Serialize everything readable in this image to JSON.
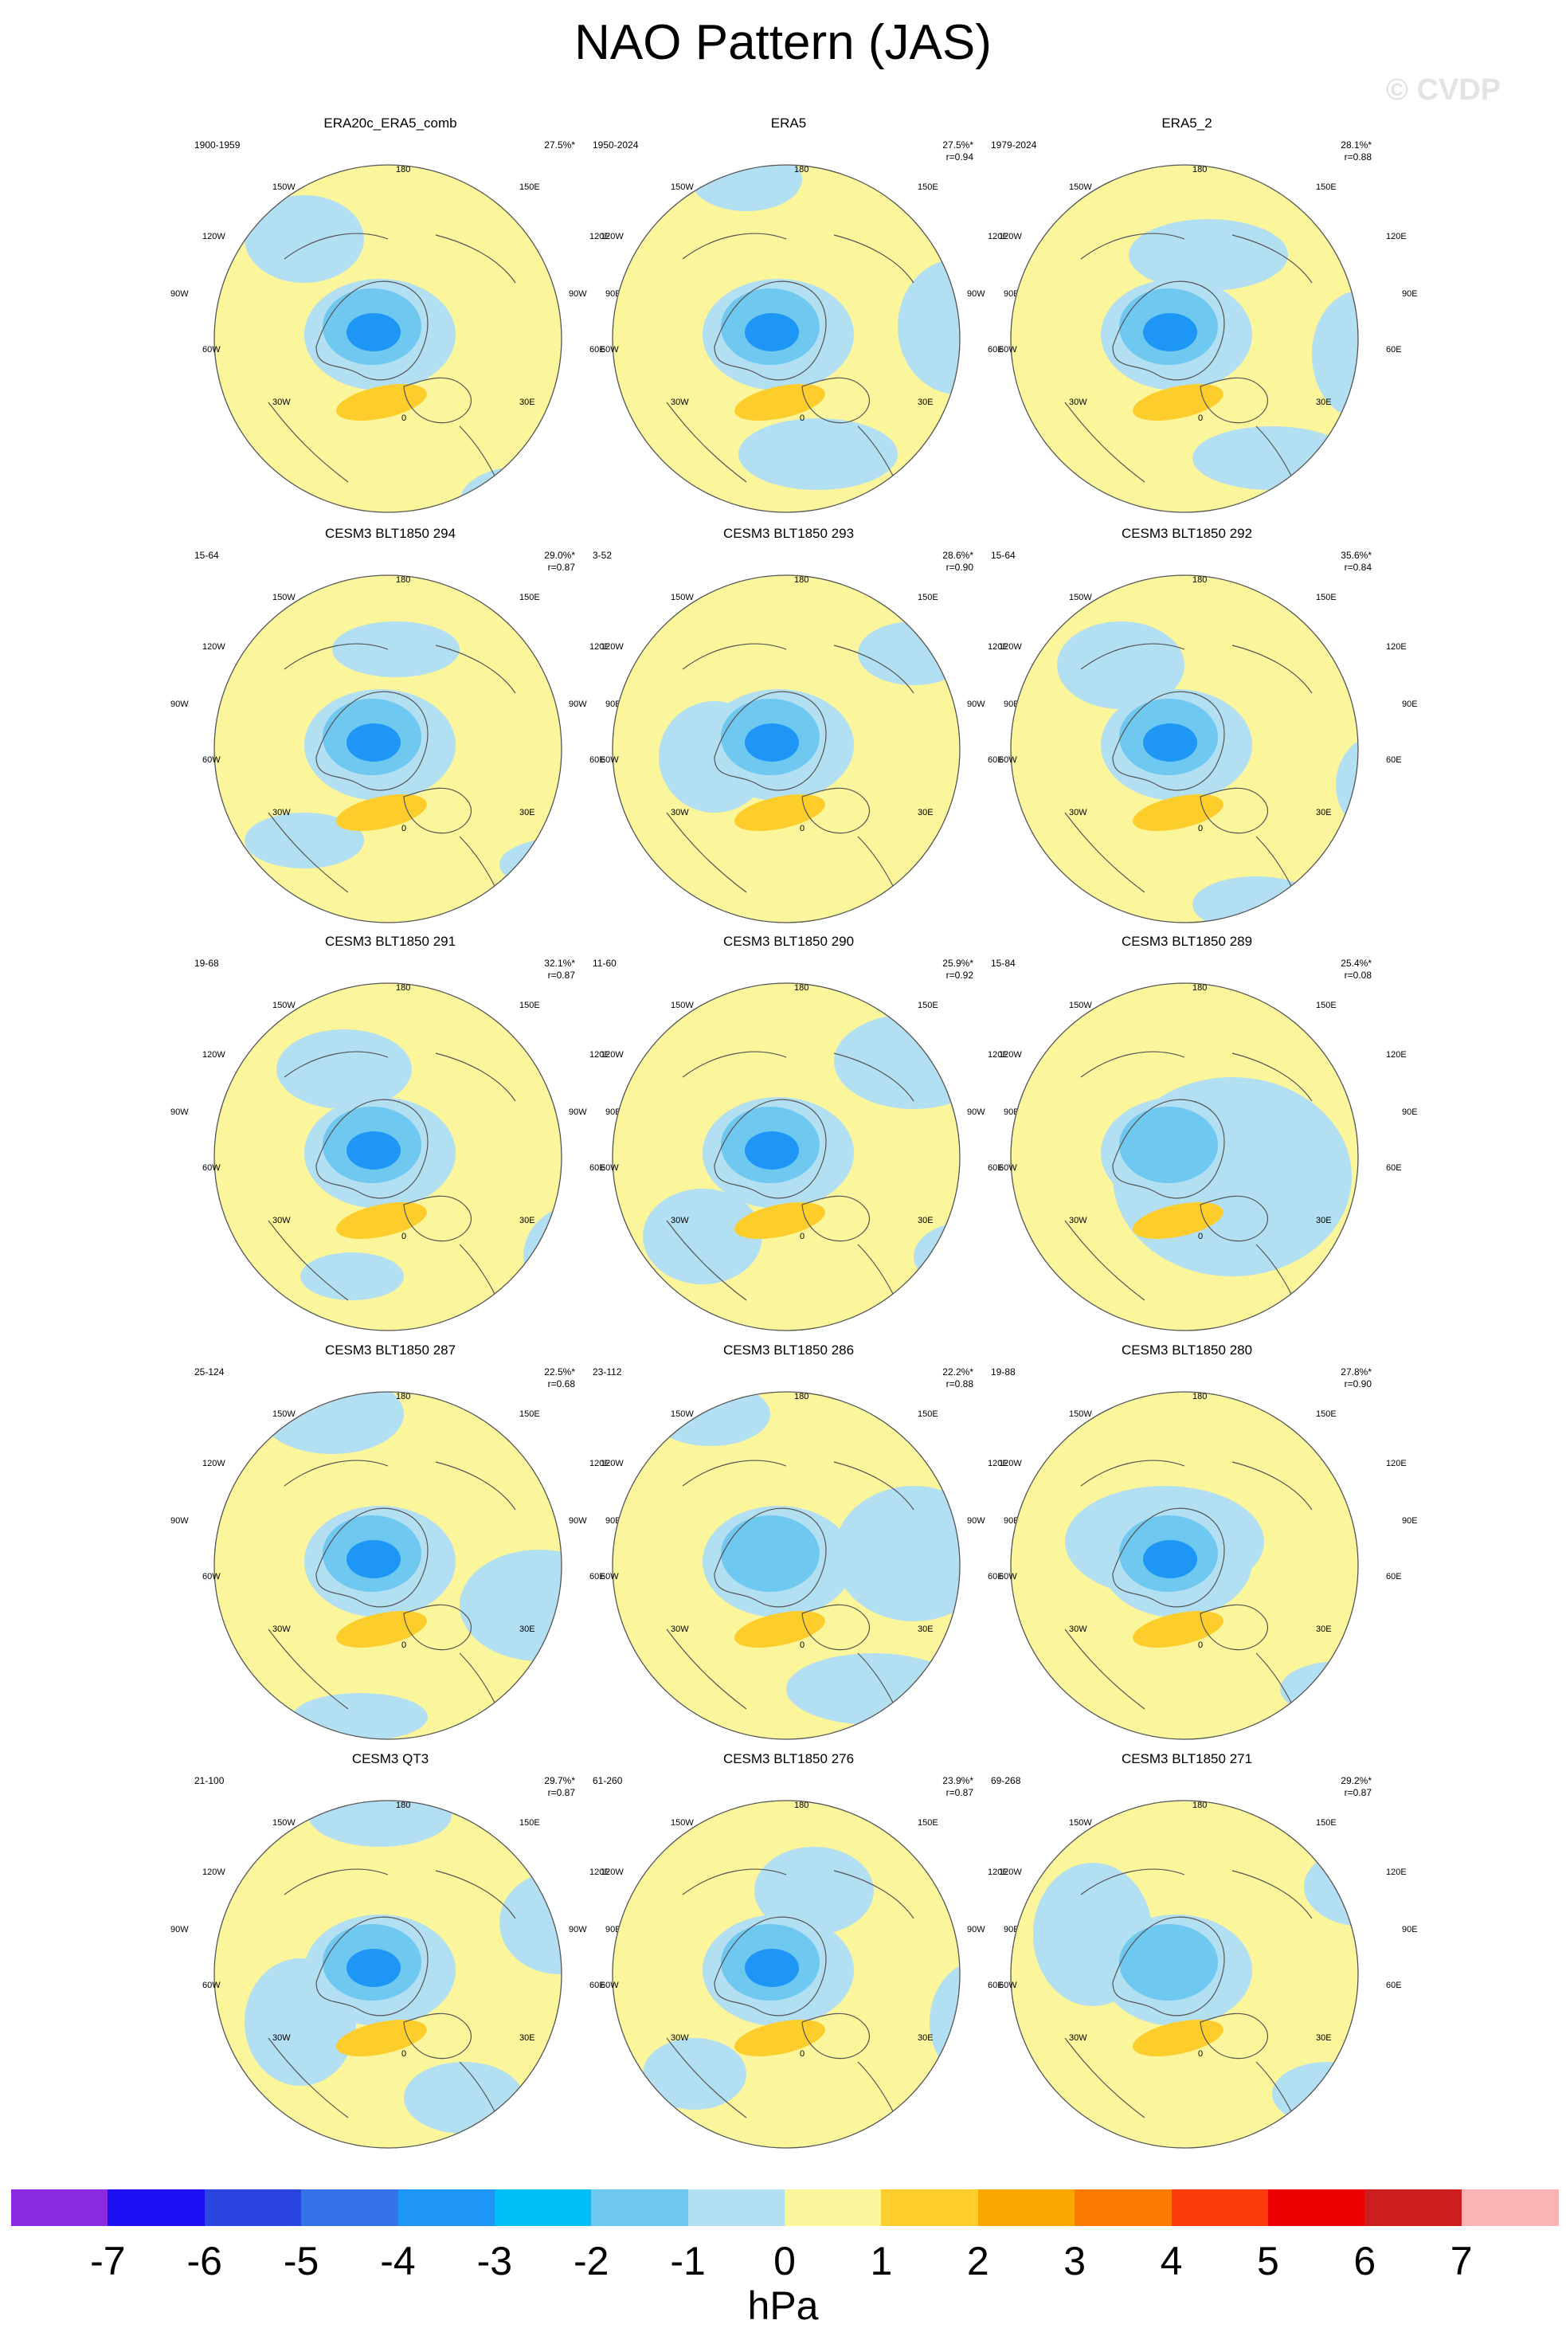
{
  "title": "NAO Pattern (JAS)",
  "watermark": "© CVDP",
  "lon_labels": {
    "top": "180",
    "top_left": "150W",
    "top_right": "150E",
    "upper_left": "120W",
    "upper_right": "120E",
    "left": "90W",
    "right": "90E",
    "lower_left": "60W",
    "lower_right": "60E",
    "bottom_left": "30W",
    "bottom_right": "30E",
    "bottom": "0"
  },
  "panels": [
    {
      "title": "ERA20c_ERA5_comb",
      "years": "1900-1959",
      "pct": "27.5%*",
      "r": "",
      "v": 0
    },
    {
      "title": "ERA5",
      "years": "1950-2024",
      "pct": "27.5%*",
      "r": "r=0.94",
      "v": 1
    },
    {
      "title": "ERA5_2",
      "years": "1979-2024",
      "pct": "28.1%*",
      "r": "r=0.88",
      "v": 2
    },
    {
      "title": "CESM3 BLT1850 294",
      "years": "15-64",
      "pct": "29.0%*",
      "r": "r=0.87",
      "v": 3
    },
    {
      "title": "CESM3 BLT1850 293",
      "years": "3-52",
      "pct": "28.6%*",
      "r": "r=0.90",
      "v": 4
    },
    {
      "title": "CESM3 BLT1850 292",
      "years": "15-64",
      "pct": "35.6%*",
      "r": "r=0.84",
      "v": 5
    },
    {
      "title": "CESM3 BLT1850 291",
      "years": "19-68",
      "pct": "32.1%*",
      "r": "r=0.87",
      "v": 6
    },
    {
      "title": "CESM3 BLT1850 290",
      "years": "11-60",
      "pct": "25.9%*",
      "r": "r=0.92",
      "v": 7
    },
    {
      "title": "CESM3 BLT1850 289",
      "years": "15-84",
      "pct": "25.4%*",
      "r": "r=0.08",
      "v": 8
    },
    {
      "title": "CESM3 BLT1850 287",
      "years": "25-124",
      "pct": "22.5%*",
      "r": "r=0.68",
      "v": 9
    },
    {
      "title": "CESM3 BLT1850 286",
      "years": "23-112",
      "pct": "22.2%*",
      "r": "r=0.88",
      "v": 10
    },
    {
      "title": "CESM3 BLT1850 280",
      "years": "19-88",
      "pct": "27.8%*",
      "r": "r=0.90",
      "v": 11
    },
    {
      "title": "CESM3 QT3",
      "years": "21-100",
      "pct": "29.7%*",
      "r": "r=0.87",
      "v": 12
    },
    {
      "title": "CESM3 BLT1850 276",
      "years": "61-260",
      "pct": "23.9%*",
      "r": "r=0.87",
      "v": 13
    },
    {
      "title": "CESM3 BLT1850 271",
      "years": "69-268",
      "pct": "29.2%*",
      "r": "r=0.87",
      "v": 14
    }
  ],
  "colorbar": {
    "units": "hPa",
    "labels": [
      "-7",
      "-6",
      "-5",
      "-4",
      "-3",
      "-2",
      "-1",
      "0",
      "1",
      "2",
      "3",
      "4",
      "5",
      "6",
      "7"
    ],
    "colors": [
      "#8a2be2",
      "#1e10f5",
      "#2b45e0",
      "#3474e8",
      "#1e96f5",
      "#00c0f8",
      "#6fc8f0",
      "#b2dff2",
      "#fbf59c",
      "#fccd2b",
      "#fca800",
      "#fc7a00",
      "#fc3c0a",
      "#ec0000",
      "#cc1e1e",
      "#fbb4b4"
    ]
  },
  "colors": {
    "land_outline": "#555555",
    "circle_outline": "#555555"
  }
}
